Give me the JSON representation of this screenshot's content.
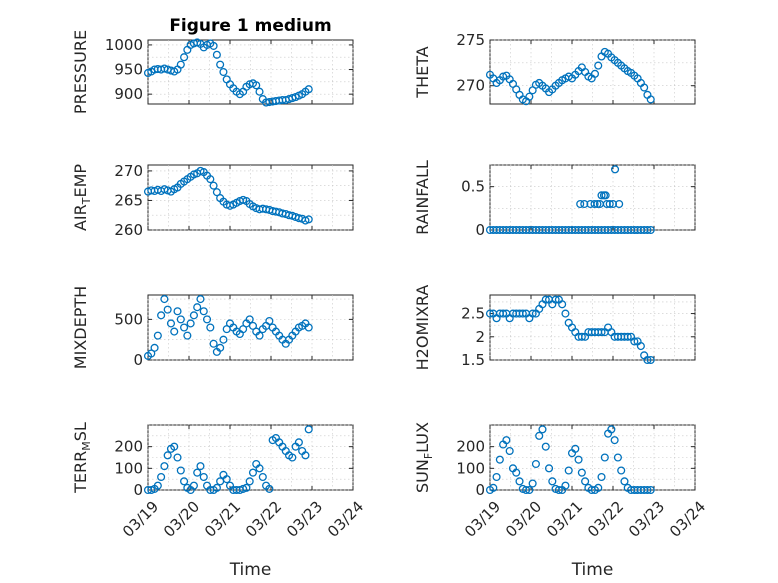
{
  "figure_title": "Figure 1 medium",
  "colors": {
    "marker": "#0072bd",
    "axis": "#262626",
    "grid": "#c8c8c8"
  },
  "chart_data": [
    {
      "type": "scatter",
      "id": "pressure",
      "title": "Figure 1 medium",
      "ylabel": "PRESSURE",
      "ylim": [
        880,
        1010
      ],
      "yticks": [
        900,
        950,
        1000
      ],
      "xlim": [
        0,
        5
      ],
      "xticks": [
        0,
        1,
        2,
        3,
        4,
        5
      ],
      "x": [
        0.0,
        0.08,
        0.16,
        0.24,
        0.32,
        0.4,
        0.48,
        0.56,
        0.64,
        0.72,
        0.8,
        0.88,
        0.96,
        1.04,
        1.12,
        1.2,
        1.28,
        1.36,
        1.44,
        1.52,
        1.6,
        1.68,
        1.76,
        1.84,
        1.92,
        2.0,
        2.08,
        2.16,
        2.24,
        2.32,
        2.4,
        2.48,
        2.56,
        2.64,
        2.72,
        2.8,
        2.88,
        2.96,
        3.04,
        3.12,
        3.2,
        3.28,
        3.36,
        3.44,
        3.52,
        3.6,
        3.68,
        3.76,
        3.84,
        3.92
      ],
      "y": [
        943,
        946,
        950,
        951,
        950,
        952,
        950,
        948,
        946,
        950,
        960,
        975,
        990,
        1000,
        1003,
        1005,
        1002,
        995,
        1000,
        1003,
        998,
        980,
        960,
        945,
        930,
        920,
        912,
        905,
        900,
        905,
        915,
        920,
        922,
        918,
        905,
        890,
        883,
        884,
        885,
        886,
        887,
        888,
        888,
        890,
        892,
        894,
        897,
        900,
        905,
        910
      ]
    },
    {
      "type": "scatter",
      "id": "theta",
      "ylabel": "THETA",
      "ylim": [
        268,
        275
      ],
      "yticks": [
        270,
        275
      ],
      "xlim": [
        0,
        5
      ],
      "xticks": [
        0,
        1,
        2,
        3,
        4,
        5
      ],
      "x": [
        0.0,
        0.08,
        0.16,
        0.24,
        0.32,
        0.4,
        0.48,
        0.56,
        0.64,
        0.72,
        0.8,
        0.88,
        0.96,
        1.04,
        1.12,
        1.2,
        1.28,
        1.36,
        1.44,
        1.52,
        1.6,
        1.68,
        1.76,
        1.84,
        1.92,
        2.0,
        2.08,
        2.16,
        2.24,
        2.32,
        2.4,
        2.48,
        2.56,
        2.64,
        2.72,
        2.8,
        2.88,
        2.96,
        3.04,
        3.12,
        3.2,
        3.28,
        3.36,
        3.44,
        3.52,
        3.6,
        3.68,
        3.76,
        3.84,
        3.92
      ],
      "y": [
        271.2,
        270.8,
        270.3,
        270.6,
        271.0,
        271.1,
        270.7,
        270.2,
        269.6,
        269.0,
        268.5,
        268.3,
        268.8,
        269.5,
        270.1,
        270.3,
        270.0,
        269.7,
        269.3,
        269.6,
        270.0,
        270.3,
        270.6,
        270.8,
        271.0,
        270.8,
        271.2,
        271.6,
        272.0,
        271.5,
        271.0,
        270.8,
        271.3,
        272.2,
        273.2,
        273.7,
        273.5,
        273.1,
        272.8,
        272.5,
        272.2,
        271.9,
        271.6,
        271.4,
        271.1,
        270.8,
        270.3,
        269.8,
        269.0,
        268.5
      ]
    },
    {
      "type": "scatter",
      "id": "air_temp",
      "ylabel": "AIR_TEMP",
      "ylim": [
        260,
        271
      ],
      "yticks": [
        260,
        265,
        270
      ],
      "xlim": [
        0,
        5
      ],
      "xticks": [
        0,
        1,
        2,
        3,
        4,
        5
      ],
      "x": [
        0.0,
        0.08,
        0.16,
        0.24,
        0.32,
        0.4,
        0.48,
        0.56,
        0.64,
        0.72,
        0.8,
        0.88,
        0.96,
        1.04,
        1.12,
        1.2,
        1.28,
        1.36,
        1.44,
        1.52,
        1.6,
        1.68,
        1.76,
        1.84,
        1.92,
        2.0,
        2.08,
        2.16,
        2.24,
        2.32,
        2.4,
        2.48,
        2.56,
        2.64,
        2.72,
        2.8,
        2.88,
        2.96,
        3.04,
        3.12,
        3.2,
        3.28,
        3.36,
        3.44,
        3.52,
        3.6,
        3.68,
        3.76,
        3.84,
        3.92
      ],
      "y": [
        266.5,
        266.7,
        266.6,
        266.8,
        266.6,
        266.9,
        266.7,
        266.5,
        266.9,
        267.2,
        267.8,
        268.2,
        268.6,
        269.0,
        269.4,
        269.6,
        270.0,
        269.8,
        269.2,
        268.6,
        267.5,
        266.4,
        265.4,
        264.8,
        264.3,
        264.1,
        264.3,
        264.6,
        264.9,
        265.1,
        264.9,
        264.4,
        264.0,
        263.7,
        263.5,
        263.6,
        263.5,
        263.4,
        263.2,
        263.1,
        263.0,
        262.8,
        262.7,
        262.5,
        262.4,
        262.2,
        262.0,
        261.9,
        261.6,
        261.8
      ]
    },
    {
      "type": "scatter",
      "id": "rainfall",
      "ylabel": "RAINFALL",
      "ylim": [
        0,
        0.75
      ],
      "yticks": [
        0,
        0.5
      ],
      "xlim": [
        0,
        5
      ],
      "xticks": [
        0,
        1,
        2,
        3,
        4,
        5
      ],
      "x": [
        0.0,
        0.08,
        0.16,
        0.24,
        0.32,
        0.4,
        0.48,
        0.56,
        0.64,
        0.72,
        0.8,
        0.88,
        0.96,
        1.04,
        1.12,
        1.2,
        1.28,
        1.36,
        1.44,
        1.52,
        1.6,
        1.68,
        1.76,
        1.84,
        1.92,
        2.0,
        2.08,
        2.16,
        2.24,
        2.32,
        2.4,
        2.48,
        2.56,
        2.64,
        2.72,
        2.8,
        2.88,
        2.96,
        3.04,
        3.12,
        3.2,
        3.28,
        3.36,
        3.44,
        3.52,
        3.6,
        3.68,
        3.76,
        3.84,
        3.92,
        2.2,
        2.3,
        2.45,
        2.55,
        2.62,
        2.72,
        2.78,
        2.85,
        2.92,
        3.05,
        3.15,
        2.68,
        2.82,
        3.0
      ],
      "y": [
        0,
        0,
        0,
        0,
        0,
        0,
        0,
        0,
        0,
        0,
        0,
        0,
        0,
        0,
        0,
        0,
        0,
        0,
        0,
        0,
        0,
        0,
        0,
        0,
        0,
        0,
        0,
        0,
        0,
        0,
        0,
        0,
        0,
        0,
        0,
        0,
        0,
        0,
        0,
        0,
        0,
        0,
        0,
        0,
        0,
        0,
        0,
        0,
        0,
        0,
        0.3,
        0.3,
        0.3,
        0.3,
        0.3,
        0.4,
        0.4,
        0.3,
        0.3,
        0.7,
        0.3,
        0.3,
        0.4,
        0.3
      ]
    },
    {
      "type": "scatter",
      "id": "mixdepth",
      "ylabel": "MIXDEPTH",
      "ylim": [
        0,
        800
      ],
      "yticks": [
        0,
        500
      ],
      "xlim": [
        0,
        5
      ],
      "xticks": [
        0,
        1,
        2,
        3,
        4,
        5
      ],
      "x": [
        0.0,
        0.08,
        0.16,
        0.24,
        0.32,
        0.4,
        0.48,
        0.56,
        0.64,
        0.72,
        0.8,
        0.88,
        0.96,
        1.04,
        1.12,
        1.2,
        1.28,
        1.36,
        1.44,
        1.52,
        1.6,
        1.68,
        1.76,
        1.84,
        1.92,
        2.0,
        2.08,
        2.16,
        2.24,
        2.32,
        2.4,
        2.48,
        2.56,
        2.64,
        2.72,
        2.8,
        2.88,
        2.96,
        3.04,
        3.12,
        3.2,
        3.28,
        3.36,
        3.44,
        3.52,
        3.6,
        3.68,
        3.76,
        3.84,
        3.92
      ],
      "y": [
        50,
        80,
        150,
        300,
        550,
        750,
        620,
        450,
        350,
        600,
        500,
        400,
        300,
        450,
        550,
        650,
        750,
        600,
        500,
        400,
        200,
        100,
        150,
        250,
        380,
        450,
        400,
        350,
        320,
        380,
        450,
        500,
        420,
        350,
        300,
        380,
        420,
        480,
        400,
        350,
        300,
        250,
        200,
        250,
        300,
        350,
        400,
        420,
        450,
        400
      ]
    },
    {
      "type": "scatter",
      "id": "h2omixra",
      "ylabel": "H2OMIXRA",
      "ylim": [
        1.5,
        2.9
      ],
      "yticks": [
        1.5,
        2,
        2.5
      ],
      "xlim": [
        0,
        5
      ],
      "xticks": [
        0,
        1,
        2,
        3,
        4,
        5
      ],
      "x": [
        0.0,
        0.08,
        0.16,
        0.24,
        0.32,
        0.4,
        0.48,
        0.56,
        0.64,
        0.72,
        0.8,
        0.88,
        0.96,
        1.04,
        1.12,
        1.2,
        1.28,
        1.36,
        1.44,
        1.52,
        1.6,
        1.68,
        1.76,
        1.84,
        1.92,
        2.0,
        2.08,
        2.16,
        2.24,
        2.32,
        2.4,
        2.48,
        2.56,
        2.64,
        2.72,
        2.8,
        2.88,
        2.96,
        3.04,
        3.12,
        3.2,
        3.28,
        3.36,
        3.44,
        3.52,
        3.6,
        3.68,
        3.76,
        3.84,
        3.92
      ],
      "y": [
        2.5,
        2.5,
        2.4,
        2.5,
        2.5,
        2.5,
        2.4,
        2.5,
        2.5,
        2.5,
        2.5,
        2.5,
        2.4,
        2.5,
        2.5,
        2.6,
        2.7,
        2.8,
        2.8,
        2.7,
        2.8,
        2.8,
        2.7,
        2.5,
        2.3,
        2.2,
        2.1,
        2.0,
        2.0,
        2.0,
        2.1,
        2.1,
        2.1,
        2.1,
        2.1,
        2.1,
        2.2,
        2.1,
        2.0,
        2.0,
        2.0,
        2.0,
        2.0,
        2.0,
        1.9,
        1.9,
        1.8,
        1.6,
        1.5,
        1.5
      ]
    },
    {
      "type": "scatter",
      "id": "terr_msl",
      "ylabel": "TERR_MSL",
      "ylim": [
        0,
        300
      ],
      "yticks": [
        0,
        100,
        200
      ],
      "xlim": [
        0,
        5
      ],
      "xticks": [
        0,
        1,
        2,
        3,
        4,
        5
      ],
      "xlabel": "Time",
      "xticklabels": [
        "03/19",
        "03/20",
        "03/21",
        "03/22",
        "03/23",
        "03/24"
      ],
      "x": [
        0.0,
        0.08,
        0.16,
        0.24,
        0.32,
        0.4,
        0.48,
        0.56,
        0.64,
        0.72,
        0.8,
        0.88,
        0.96,
        1.04,
        1.12,
        1.2,
        1.28,
        1.36,
        1.44,
        1.52,
        1.6,
        1.68,
        1.76,
        1.84,
        1.92,
        2.0,
        2.08,
        2.16,
        2.24,
        2.32,
        2.4,
        2.48,
        2.56,
        2.64,
        2.72,
        2.8,
        2.88,
        2.96,
        3.04,
        3.12,
        3.2,
        3.28,
        3.36,
        3.44,
        3.52,
        3.6,
        3.68,
        3.76,
        3.84,
        3.92
      ],
      "y": [
        0,
        0,
        5,
        20,
        60,
        110,
        160,
        190,
        200,
        150,
        90,
        40,
        10,
        0,
        20,
        80,
        110,
        60,
        20,
        0,
        0,
        10,
        40,
        70,
        50,
        20,
        0,
        0,
        0,
        5,
        10,
        40,
        80,
        120,
        100,
        60,
        20,
        5,
        230,
        240,
        220,
        200,
        180,
        160,
        150,
        200,
        220,
        180,
        160,
        280
      ]
    },
    {
      "type": "scatter",
      "id": "sun_flux",
      "ylabel": "SUN_FLUX",
      "ylim": [
        0,
        300
      ],
      "yticks": [
        0,
        100,
        200
      ],
      "xlim": [
        0,
        5
      ],
      "xticks": [
        0,
        1,
        2,
        3,
        4,
        5
      ],
      "xlabel": "Time",
      "xticklabels": [
        "03/19",
        "03/20",
        "03/21",
        "03/22",
        "03/23",
        "03/24"
      ],
      "x": [
        0.0,
        0.08,
        0.16,
        0.24,
        0.32,
        0.4,
        0.48,
        0.56,
        0.64,
        0.72,
        0.8,
        0.88,
        0.96,
        1.04,
        1.12,
        1.2,
        1.28,
        1.36,
        1.44,
        1.52,
        1.6,
        1.68,
        1.76,
        1.84,
        1.92,
        2.0,
        2.08,
        2.16,
        2.24,
        2.32,
        2.4,
        2.48,
        2.56,
        2.64,
        2.72,
        2.8,
        2.88,
        2.96,
        3.04,
        3.12,
        3.2,
        3.28,
        3.36,
        3.44,
        3.52,
        3.6,
        3.68,
        3.76,
        3.84,
        3.92
      ],
      "y": [
        0,
        10,
        60,
        140,
        210,
        230,
        180,
        100,
        80,
        40,
        5,
        0,
        0,
        30,
        120,
        250,
        280,
        200,
        100,
        40,
        5,
        0,
        0,
        20,
        90,
        170,
        190,
        140,
        80,
        40,
        10,
        0,
        0,
        10,
        60,
        150,
        260,
        280,
        230,
        150,
        90,
        40,
        10,
        0,
        0,
        0,
        0,
        0,
        0,
        0
      ]
    }
  ]
}
